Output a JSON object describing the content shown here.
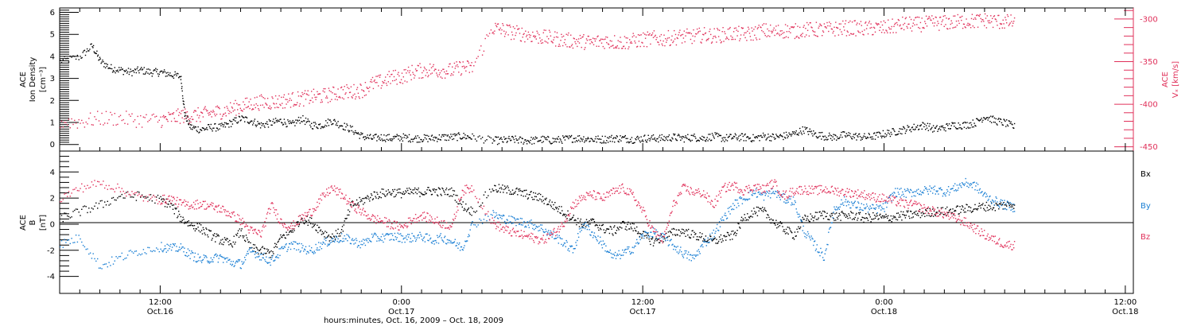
{
  "colors": {
    "black": "#000000",
    "red": "#e0305a",
    "blue": "#1a7fd4"
  },
  "xaxis": {
    "title": "hours:minutes, Oct. 16, 2009 – Oct. 18, 2009",
    "ticks": [
      {
        "t": 12,
        "time": "12:00",
        "date": "Oct.16"
      },
      {
        "t": 24,
        "time": "0:00",
        "date": "Oct.17"
      },
      {
        "t": 36,
        "time": "12:00",
        "date": "Oct.17"
      },
      {
        "t": 48,
        "time": "0:00",
        "date": "Oct.18"
      },
      {
        "t": 60,
        "time": "12:00",
        "date": "Oct.18"
      }
    ]
  },
  "chart_data": [
    {
      "type": "scatter",
      "panel": "top",
      "xlim_hours_since": "2009-10-16 07:00",
      "xlim": [
        7,
        60.4
      ],
      "left_axis": {
        "label_lines": [
          "ACE",
          "Ion Density",
          "[cm⁻³]"
        ],
        "ylim": [
          -0.3,
          6.2
        ],
        "ticks": [
          0,
          1,
          2,
          3,
          4,
          5,
          6
        ],
        "color": "#000000"
      },
      "right_axis": {
        "label_lines": [
          "ACE",
          "Vₓ [km/s]"
        ],
        "ylim": [
          -455,
          -287
        ],
        "ticks": [
          -300,
          -350,
          -400,
          -450
        ],
        "color": "#e0305a"
      },
      "series": [
        {
          "axis": "left",
          "color": "#000000",
          "x": [
            7.0,
            8.0,
            8.6,
            9.0,
            9.5,
            10.0,
            10.5,
            11.0,
            11.5,
            12.0,
            12.5,
            13.0,
            13.2,
            13.5,
            14.0,
            14.5,
            15.0,
            15.5,
            16.0,
            16.5,
            17.0,
            17.5,
            18.0,
            18.5,
            19.0,
            19.5,
            20.0,
            20.5,
            21.0,
            21.5,
            22.0,
            22.5,
            23.0,
            23.5,
            24.0,
            24.5,
            25.0,
            25.5,
            26.0,
            26.5,
            27.0,
            27.5,
            28.5,
            29.0,
            29.5,
            30.0,
            30.5,
            31.0,
            31.5,
            32.0,
            32.5,
            33.0,
            33.5,
            34.0,
            34.5,
            35.0,
            35.5,
            36.0,
            36.5,
            37.0,
            37.5,
            38.0,
            38.5,
            39.0,
            39.5,
            40.0,
            40.5,
            41.0,
            41.5,
            42.0,
            42.5,
            43.0,
            43.5,
            44.0,
            44.5,
            45.0,
            45.5,
            46.0,
            46.5,
            47.0,
            47.5,
            48.0,
            48.5,
            49.0,
            49.5,
            50.0,
            50.5,
            51.0,
            51.5,
            52.0,
            52.5,
            53.0,
            53.5,
            54.0,
            54.5
          ],
          "y": [
            3.8,
            4.0,
            4.5,
            3.8,
            3.5,
            3.4,
            3.3,
            3.4,
            3.3,
            3.3,
            3.2,
            3.1,
            1.4,
            0.8,
            0.7,
            0.8,
            0.8,
            1.0,
            1.2,
            1.1,
            0.9,
            1.0,
            1.1,
            0.9,
            1.2,
            0.9,
            0.9,
            1.1,
            0.9,
            0.7,
            0.4,
            0.3,
            0.35,
            0.3,
            0.35,
            0.3,
            0.3,
            0.3,
            0.35,
            0.35,
            0.4,
            0.35,
            0.2,
            0.2,
            0.25,
            0.2,
            0.2,
            0.25,
            0.2,
            0.25,
            0.3,
            0.3,
            0.25,
            0.25,
            0.3,
            0.3,
            0.25,
            0.3,
            0.3,
            0.3,
            0.35,
            0.3,
            0.35,
            0.3,
            0.4,
            0.3,
            0.35,
            0.35,
            0.3,
            0.4,
            0.35,
            0.4,
            0.5,
            0.7,
            0.5,
            0.4,
            0.35,
            0.45,
            0.4,
            0.35,
            0.4,
            0.5,
            0.6,
            0.7,
            0.8,
            0.9,
            0.7,
            0.8,
            0.9,
            0.9,
            1.0,
            1.3,
            1.1,
            1.0,
            0.8
          ]
        },
        {
          "axis": "right",
          "color": "#e0305a",
          "x": [
            7.0,
            8.0,
            9.0,
            10.0,
            11.0,
            12.0,
            12.5,
            13.0,
            13.5,
            14.0,
            14.5,
            15.0,
            15.5,
            16.0,
            16.5,
            17.0,
            17.5,
            18.0,
            18.5,
            19.0,
            19.5,
            20.0,
            20.5,
            21.0,
            21.5,
            22.0,
            22.5,
            23.0,
            23.5,
            24.0,
            24.5,
            25.0,
            25.5,
            26.0,
            26.5,
            27.0,
            27.5,
            28.5,
            29.0,
            29.5,
            30.0,
            30.5,
            31.0,
            31.5,
            32.0,
            32.5,
            33.0,
            33.5,
            34.0,
            34.5,
            35.0,
            35.5,
            36.0,
            36.5,
            37.0,
            37.5,
            38.0,
            38.5,
            39.0,
            39.5,
            40.0,
            40.5,
            41.0,
            41.5,
            42.0,
            42.5,
            43.0,
            43.5,
            44.0,
            44.5,
            45.0,
            45.5,
            46.0,
            46.5,
            47.0,
            47.5,
            48.0,
            48.5,
            49.0,
            49.5,
            50.0,
            50.5,
            51.0,
            51.5,
            52.0,
            52.5,
            53.0,
            53.5,
            54.0,
            54.5
          ],
          "y": [
            -420,
            -420,
            -416,
            -416,
            -418,
            -418,
            -416,
            -413,
            -413,
            -412,
            -410,
            -408,
            -405,
            -402,
            -399,
            -397,
            -397,
            -396,
            -394,
            -393,
            -391,
            -390,
            -388,
            -385,
            -385,
            -383,
            -376,
            -373,
            -368,
            -367,
            -362,
            -360,
            -359,
            -360,
            -360,
            -356,
            -357,
            -310,
            -312,
            -315,
            -317,
            -319,
            -321,
            -322,
            -324,
            -325,
            -326,
            -327,
            -325,
            -326,
            -327,
            -325,
            -324,
            -322,
            -323,
            -321,
            -320,
            -320,
            -318,
            -319,
            -318,
            -316,
            -318,
            -316,
            -313,
            -315,
            -313,
            -314,
            -312,
            -312,
            -312,
            -311,
            -310,
            -310,
            -311,
            -310,
            -310,
            -308,
            -305,
            -306,
            -305,
            -304,
            -304,
            -303,
            -302,
            -302,
            -301,
            -302,
            -303,
            -303
          ]
        }
      ]
    },
    {
      "type": "scatter",
      "panel": "bottom",
      "xlim_hours_since": "2009-10-16 07:00",
      "xlim": [
        7,
        60.4
      ],
      "left_axis": {
        "label_lines": [
          "ACE",
          "B",
          "[nT]"
        ],
        "ylim": [
          -5.3,
          5.6
        ],
        "ticks": [
          -4,
          -2,
          0,
          2,
          4
        ]
      },
      "zero_line": true,
      "series": [
        {
          "name": "Bx",
          "color": "#000000",
          "x": [
            7,
            8,
            9,
            10,
            11,
            12,
            12.5,
            13,
            13.5,
            14,
            14.5,
            15,
            15.5,
            16,
            16.5,
            17,
            17.5,
            18,
            18.5,
            19,
            19.5,
            20,
            20.5,
            21,
            21.5,
            22,
            22.5,
            23,
            23.5,
            24,
            24.5,
            25,
            25.5,
            26,
            26.5,
            27,
            27.5,
            28.5,
            29,
            29.5,
            30,
            30.5,
            31,
            31.5,
            32,
            32.5,
            33,
            33.5,
            34,
            34.5,
            35,
            35.5,
            36,
            36.5,
            37,
            37.5,
            38,
            38.5,
            39,
            39.5,
            40,
            40.5,
            41,
            41.5,
            42,
            42.5,
            43,
            43.5,
            44,
            44.5,
            45,
            45.5,
            46,
            46.5,
            47,
            47.5,
            48,
            48.5,
            49,
            49.5,
            50,
            50.5,
            51,
            51.5,
            52,
            52.5,
            53,
            53.5,
            54,
            54.5
          ],
          "y": [
            0.5,
            1.0,
            1.5,
            2.2,
            2.2,
            1.9,
            1.5,
            0.5,
            0.0,
            -0.3,
            -0.8,
            -1.2,
            -1.5,
            -0.5,
            -1.8,
            -2.0,
            -2.2,
            -1.0,
            -0.5,
            0.5,
            0.2,
            -0.5,
            -1.0,
            -0.5,
            1.5,
            1.8,
            2.2,
            2.4,
            2.5,
            2.4,
            2.5,
            2.5,
            2.6,
            2.5,
            2.5,
            1.5,
            1.0,
            2.8,
            2.7,
            2.6,
            2.4,
            2.2,
            2.0,
            1.5,
            1.0,
            0.5,
            0.0,
            0.2,
            -0.3,
            -0.5,
            0.0,
            -0.2,
            -0.8,
            -1.3,
            -1.0,
            -0.6,
            -0.5,
            -0.8,
            -1.0,
            -1.3,
            -1.0,
            -0.8,
            0.5,
            1.0,
            1.0,
            0.2,
            -0.3,
            -0.8,
            0.4,
            0.6,
            0.8,
            0.6,
            0.7,
            0.7,
            0.5,
            0.6,
            0.5,
            0.6,
            0.7,
            0.8,
            0.9,
            1.0,
            1.0,
            1.1,
            1.2,
            1.3,
            1.4,
            1.4,
            1.5,
            1.6
          ]
        },
        {
          "name": "By",
          "color": "#1a7fd4",
          "x": [
            7,
            8,
            9,
            10,
            11,
            12,
            12.5,
            13,
            13.5,
            14,
            14.5,
            15,
            15.5,
            16,
            16.5,
            17,
            17.5,
            18,
            18.5,
            19,
            19.5,
            20,
            20.5,
            21,
            21.5,
            22,
            22.5,
            23,
            23.5,
            24,
            24.5,
            25,
            25.5,
            26,
            26.5,
            27,
            27.5,
            28.5,
            29,
            29.5,
            30,
            30.5,
            31,
            31.5,
            32,
            32.5,
            33,
            33.5,
            34,
            34.5,
            35,
            35.5,
            36,
            36.5,
            37,
            37.5,
            38,
            38.5,
            39,
            39.5,
            40,
            40.5,
            41,
            41.5,
            42,
            42.5,
            43,
            43.5,
            44,
            44.5,
            45,
            45.5,
            46,
            46.5,
            47,
            47.5,
            48,
            48.5,
            49,
            49.5,
            50,
            50.5,
            51,
            51.5,
            52,
            52.5,
            53,
            53.5,
            54,
            54.5
          ],
          "y": [
            -1.5,
            -1.0,
            -3.2,
            -2.5,
            -2.0,
            -1.7,
            -1.8,
            -1.8,
            -2.3,
            -2.7,
            -2.6,
            -2.5,
            -2.9,
            -3.0,
            -2.0,
            -2.4,
            -2.8,
            -2.0,
            -1.5,
            -1.8,
            -2.0,
            -1.5,
            -1.2,
            -1.0,
            -1.2,
            -1.5,
            -1.0,
            -1.0,
            -0.9,
            -1.0,
            -1.0,
            -0.9,
            -1.2,
            -1.0,
            -1.3,
            -1.8,
            0.0,
            0.8,
            0.5,
            0.3,
            0.2,
            0.0,
            -0.3,
            -0.8,
            -1.3,
            -2.0,
            0.1,
            -0.7,
            -1.5,
            -2.5,
            -2.2,
            -1.8,
            -0.8,
            -0.6,
            -1.0,
            -1.6,
            -2.2,
            -2.6,
            -1.5,
            -0.7,
            0.5,
            1.5,
            2.0,
            2.5,
            2.2,
            2.5,
            2.0,
            1.8,
            -0.5,
            -1.5,
            -2.5,
            1.2,
            1.8,
            1.5,
            1.3,
            1.2,
            1.3,
            2.5,
            2.4,
            2.5,
            2.6,
            2.7,
            2.5,
            2.8,
            3.2,
            3.0,
            2.2,
            1.8,
            1.5,
            1.3
          ]
        },
        {
          "name": "Bz",
          "color": "#e0305a",
          "x": [
            7,
            8,
            9,
            10,
            11,
            12,
            12.5,
            13,
            13.5,
            14,
            14.5,
            15,
            15.5,
            16,
            16.5,
            17,
            17.5,
            18,
            18.5,
            19,
            19.5,
            20,
            20.5,
            21,
            21.5,
            22,
            22.5,
            23,
            23.5,
            24,
            24.5,
            25,
            25.5,
            26,
            26.5,
            27,
            27.5,
            28.5,
            29,
            29.5,
            30,
            30.5,
            31,
            31.5,
            32,
            32.5,
            33,
            33.5,
            34,
            34.5,
            35,
            35.5,
            36,
            36.5,
            37,
            37.5,
            38,
            38.5,
            39,
            39.5,
            40,
            40.5,
            41,
            41.5,
            42,
            42.5,
            43,
            43.5,
            44,
            44.5,
            45,
            45.5,
            46,
            46.5,
            47,
            47.5,
            48,
            48.5,
            49,
            49.5,
            50,
            50.5,
            51,
            51.5,
            52,
            52.5,
            53,
            53.5,
            54,
            54.5
          ],
          "y": [
            2.0,
            2.8,
            3.2,
            2.7,
            2.1,
            1.9,
            2.0,
            1.6,
            1.5,
            1.6,
            1.4,
            1.2,
            0.8,
            0.3,
            -0.5,
            -0.7,
            1.5,
            0.2,
            -0.2,
            0.5,
            1.0,
            2.0,
            2.8,
            2.3,
            1.5,
            1.0,
            0.5,
            0.3,
            0.0,
            -0.2,
            0.4,
            0.7,
            0.4,
            0.1,
            -0.1,
            2.6,
            2.8,
            0.2,
            -0.3,
            -0.6,
            -0.8,
            -1.0,
            -1.2,
            -0.7,
            0.0,
            1.5,
            2.1,
            2.3,
            2.0,
            2.5,
            2.8,
            2.2,
            1.0,
            -0.5,
            -1.2,
            1.5,
            2.8,
            2.5,
            2.4,
            1.5,
            2.8,
            3.0,
            2.6,
            2.9,
            2.7,
            3.2,
            2.2,
            2.6,
            2.7,
            2.6,
            2.7,
            2.6,
            2.5,
            2.4,
            2.3,
            2.1,
            2.0,
            1.8,
            1.6,
            1.5,
            1.2,
            1.0,
            0.8,
            0.5,
            0.2,
            -0.3,
            -0.8,
            -1.2,
            -1.5,
            -1.6
          ]
        }
      ]
    }
  ]
}
